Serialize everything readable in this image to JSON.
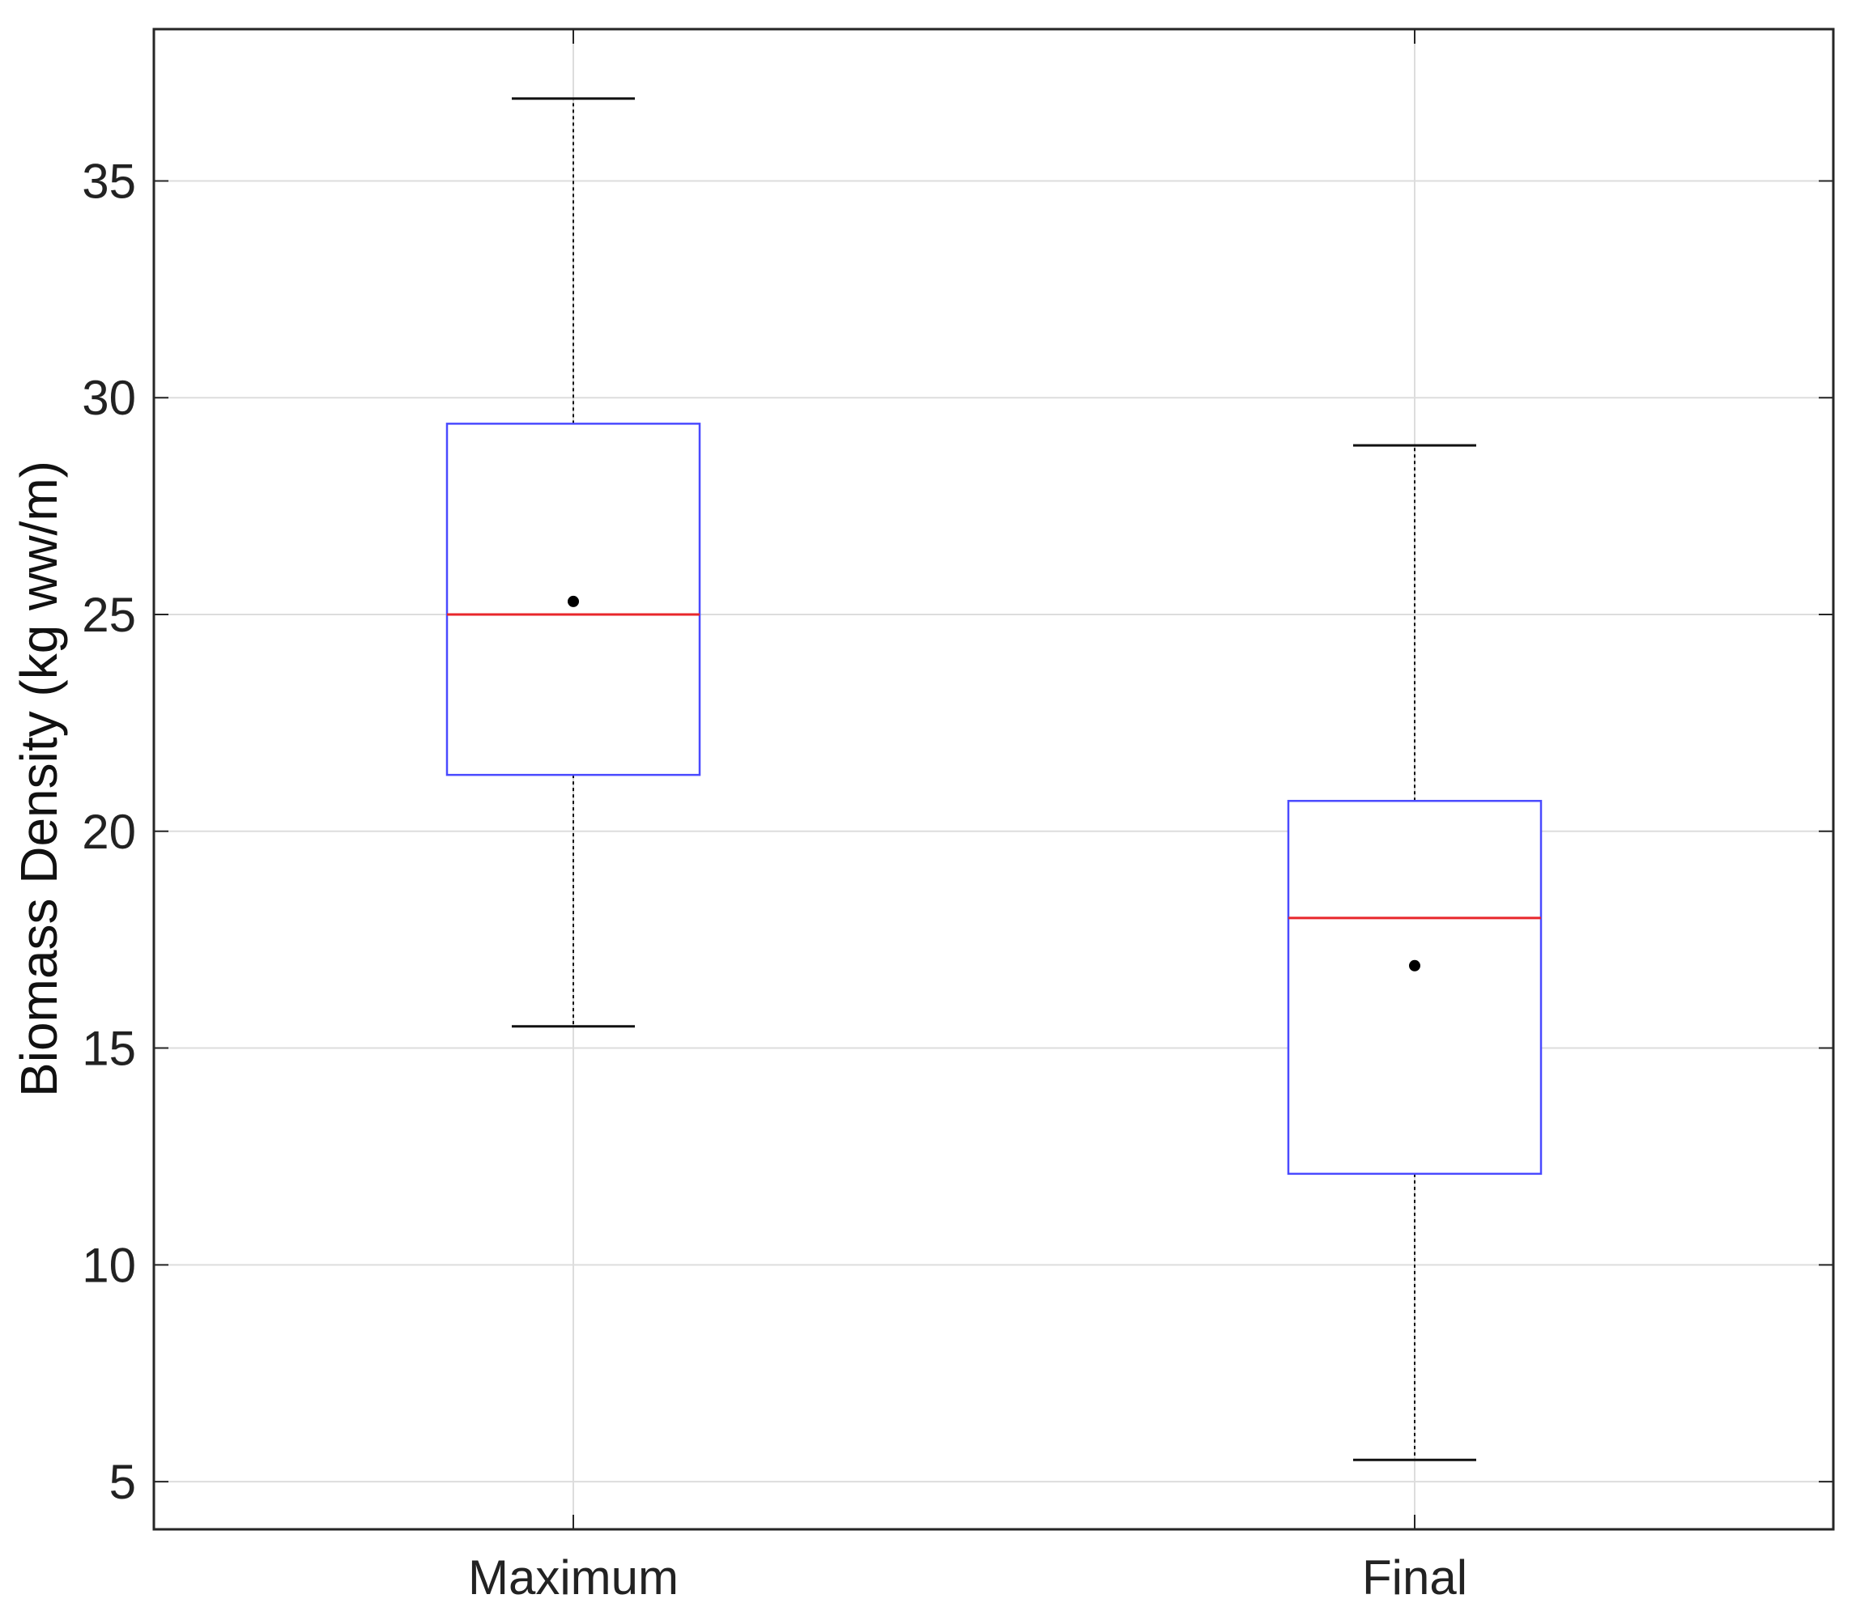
{
  "chart_data": {
    "type": "box",
    "ylabel": "Biomass Density (kg ww/m)",
    "xlabel": "",
    "ylim": [
      3.9,
      38.5
    ],
    "yticks": [
      5,
      10,
      15,
      20,
      25,
      30,
      35
    ],
    "grid": true,
    "categories": [
      "Maximum",
      "Final"
    ],
    "boxes": [
      {
        "category": "Maximum",
        "whisker_low": 15.5,
        "q1": 21.3,
        "median": 25.0,
        "q3": 29.4,
        "whisker_high": 36.9,
        "mean": 25.3
      },
      {
        "category": "Final",
        "whisker_low": 5.5,
        "q1": 12.1,
        "median": 18.0,
        "q3": 20.7,
        "whisker_high": 28.9,
        "mean": 16.9
      }
    ],
    "colors": {
      "box": "#4a4aff",
      "median": "#e8262b",
      "whisker": "#111111",
      "mean_marker": "#000000",
      "grid": "#dddddd",
      "axes": "#262626"
    }
  }
}
